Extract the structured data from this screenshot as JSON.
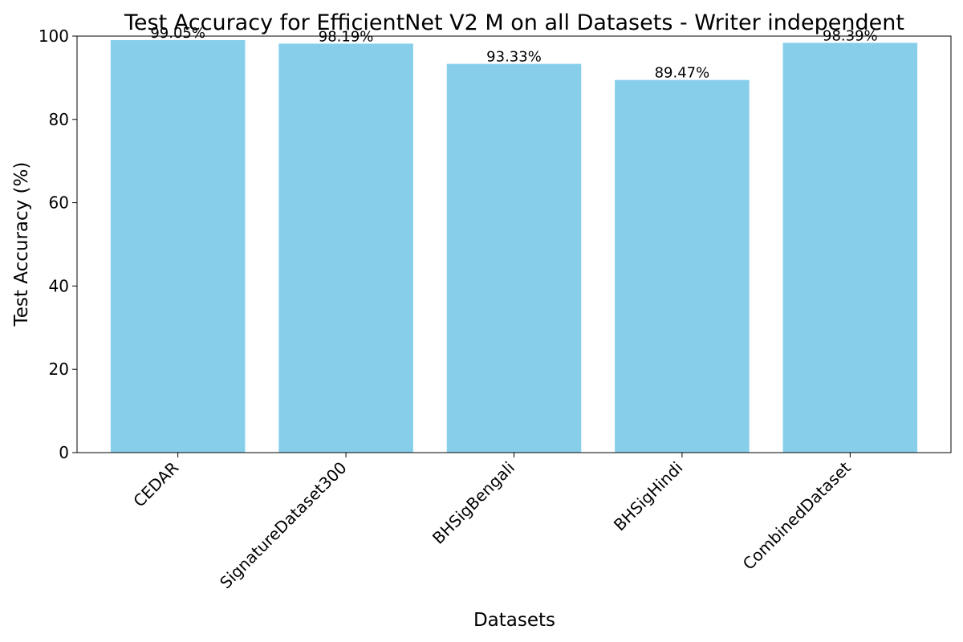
{
  "chart_data": {
    "type": "bar",
    "title": "Test Accuracy for EfficientNet V2 M on all Datasets - Writer independent",
    "xlabel": "Datasets",
    "ylabel": "Test Accuracy (%)",
    "categories": [
      "CEDAR",
      "SignatureDataset300",
      "BHSigBengali",
      "BHSigHindi",
      "CombinedDataset"
    ],
    "values": [
      99.05,
      98.19,
      93.33,
      89.47,
      98.39
    ],
    "data_labels": [
      "99.05%",
      "98.19%",
      "93.33%",
      "89.47%",
      "98.39%"
    ],
    "ylim": [
      0,
      100
    ],
    "yticks": [
      0,
      20,
      40,
      60,
      80,
      100
    ],
    "ytick_labels": [
      "0",
      "20",
      "40",
      "60",
      "80",
      "100"
    ],
    "bar_color": "#87CEEB",
    "grid": false,
    "legend": false
  }
}
